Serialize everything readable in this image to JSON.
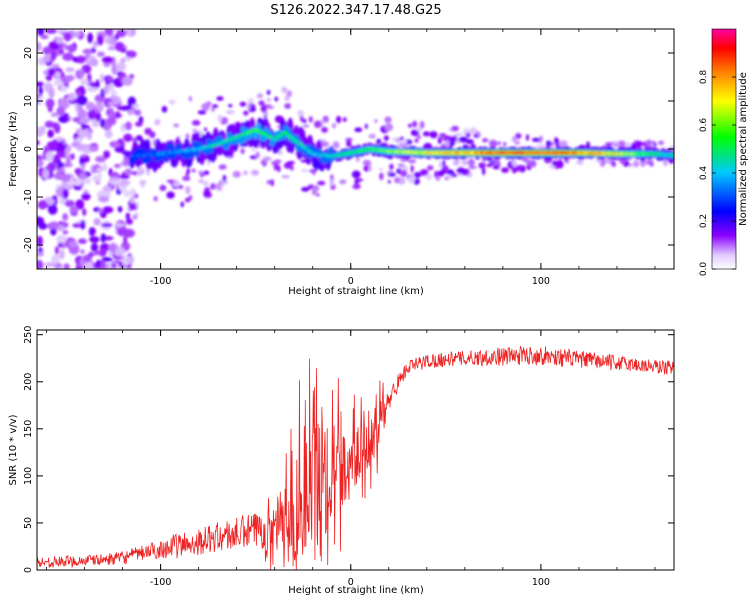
{
  "title": "S126.2022.347.17.48.G25",
  "chart_data": [
    {
      "type": "heatmap",
      "xlabel": "Height of straight line (km)",
      "ylabel": "Frequency (Hz)",
      "xlim": [
        -165,
        170
      ],
      "ylim": [
        -25,
        25
      ],
      "xticks": [
        -100,
        0,
        100
      ],
      "yticks": [
        -20,
        -10,
        0,
        10,
        20
      ],
      "colorbar": {
        "label": "Normalized spectral amplitude",
        "range": [
          0,
          1
        ],
        "ticks": [
          "0.0",
          "0.2",
          "0.4",
          "0.6",
          "0.8"
        ],
        "colormap": [
          "#ffffff",
          "#e0c8ff",
          "#8a00ff",
          "#0000ff",
          "#00c8ff",
          "#00ff00",
          "#ffff00",
          "#ff8000",
          "#ff0000",
          "#ff00a0"
        ]
      },
      "ridge": {
        "x": [
          -115,
          -100,
          -90,
          -80,
          -70,
          -60,
          -50,
          -40,
          -35,
          -25,
          -20,
          -10,
          0,
          10,
          20,
          40,
          60,
          80,
          100,
          120,
          140,
          160,
          168
        ],
        "y": [
          -1.5,
          -1,
          -0.5,
          0,
          1,
          2.5,
          4,
          2,
          3.5,
          0.5,
          -1,
          -1.5,
          -0.8,
          0,
          -0.5,
          -0.8,
          -0.8,
          -0.8,
          -0.8,
          -0.8,
          -1,
          -1,
          -1.3
        ],
        "amplitude": [
          0.3,
          0.35,
          0.35,
          0.4,
          0.45,
          0.5,
          0.55,
          0.5,
          0.5,
          0.45,
          0.4,
          0.45,
          0.5,
          0.55,
          0.6,
          0.72,
          0.8,
          0.9,
          0.9,
          0.85,
          0.7,
          0.5,
          0.45
        ]
      },
      "noise_region_x": [
        -165,
        -115
      ],
      "color_scale": "rainbow"
    },
    {
      "type": "line",
      "xlabel": "Height of straight line (km)",
      "ylabel": "SNR (10 * v/v)",
      "xlim": [
        -165,
        170
      ],
      "ylim": [
        0,
        255
      ],
      "xticks": [
        -100,
        0,
        100
      ],
      "yticks": [
        0,
        50,
        100,
        150,
        200,
        250
      ],
      "line_color": "#ee2222",
      "x": [
        -165,
        -150,
        -140,
        -130,
        -120,
        -110,
        -100,
        -95,
        -90,
        -80,
        -70,
        -60,
        -50,
        -45,
        -40,
        -35,
        -30,
        -25,
        -20,
        -15,
        -10,
        -5,
        0,
        5,
        10,
        15,
        20,
        25,
        30,
        40,
        50,
        60,
        70,
        80,
        90,
        100,
        110,
        120,
        130,
        140,
        150,
        160,
        170
      ],
      "y": [
        8,
        9,
        10,
        11,
        13,
        18,
        22,
        25,
        26,
        30,
        35,
        38,
        42,
        45,
        45,
        52,
        60,
        75,
        90,
        100,
        105,
        110,
        115,
        125,
        135,
        155,
        180,
        200,
        215,
        222,
        224,
        225,
        226,
        227,
        228,
        228,
        226,
        224,
        222,
        220,
        218,
        216,
        215
      ],
      "noise_amplitude": [
        6,
        6,
        6,
        6,
        7,
        8,
        10,
        12,
        14,
        14,
        16,
        18,
        20,
        24,
        30,
        40,
        55,
        70,
        75,
        70,
        55,
        45,
        35,
        35,
        30,
        22,
        12,
        9,
        8,
        8,
        8,
        8,
        9,
        10,
        10,
        10,
        10,
        9,
        9,
        8,
        8,
        8,
        8
      ]
    }
  ]
}
